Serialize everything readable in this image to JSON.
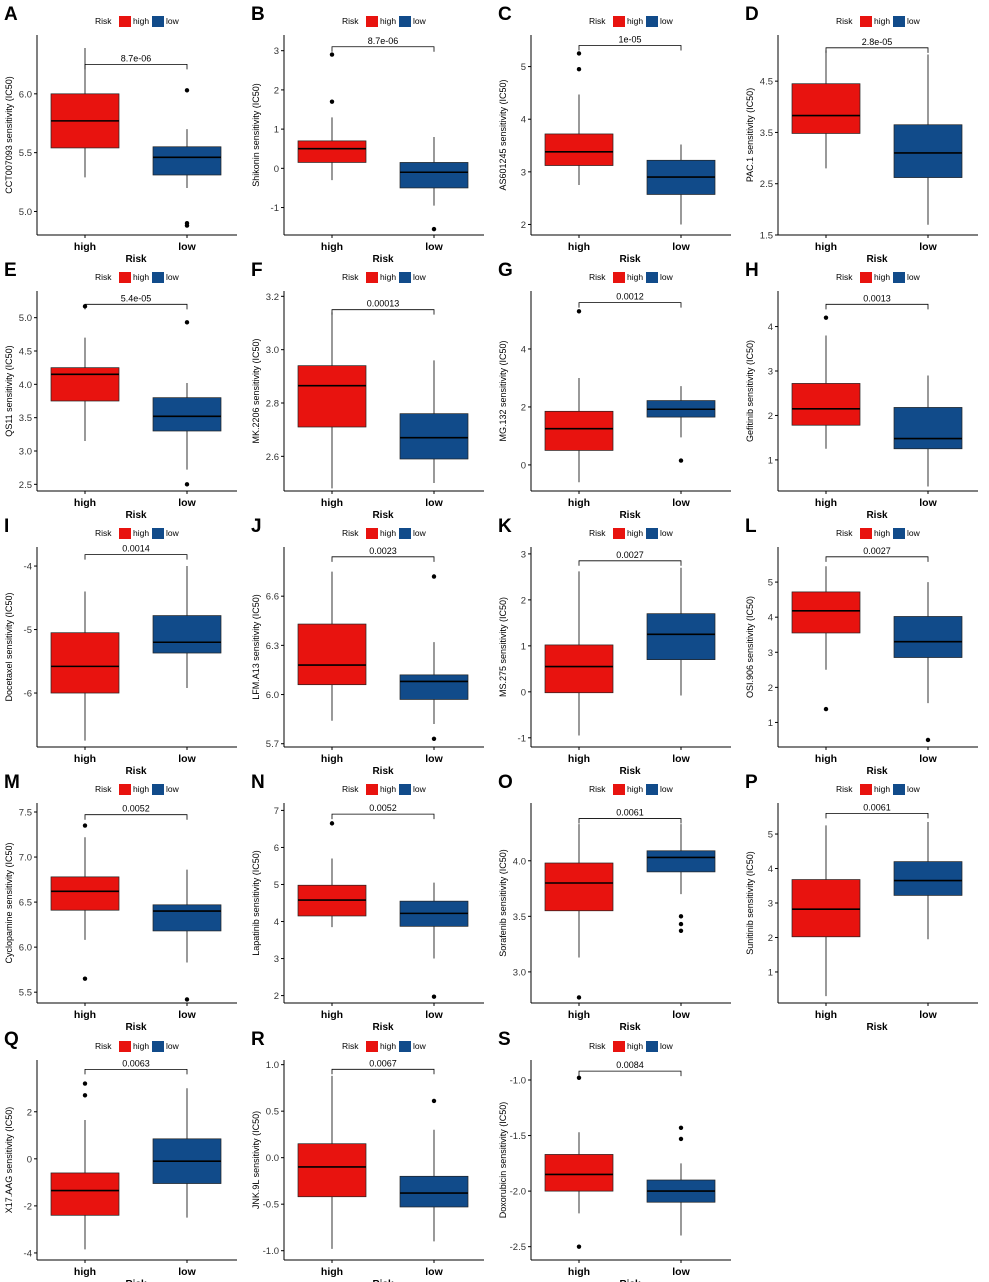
{
  "figure": {
    "legend_title": "Risk",
    "colors": {
      "high": "#e8130f",
      "low": "#114b8a"
    }
  },
  "chart_data": [
    {
      "type": "box",
      "panel": "A",
      "title": "",
      "ylabel": "CCT007093 sensitivity (IC50)",
      "xlabel": "Risk",
      "categories": [
        "high",
        "low"
      ],
      "legend": [
        "high",
        "low"
      ],
      "pvalue": "8.7e-06",
      "ylim": [
        4.8,
        6.5
      ],
      "yticks": [
        5.0,
        5.5,
        6.0
      ],
      "ytick_labels": [
        "5.0",
        "5.5",
        "6.0"
      ],
      "bracket": 6.25,
      "boxes": [
        {
          "group": "high",
          "min": 5.29,
          "q1": 5.54,
          "median": 5.77,
          "q3": 6.0,
          "max": 6.39,
          "outliers": []
        },
        {
          "group": "low",
          "min": 5.2,
          "q1": 5.31,
          "median": 5.46,
          "q3": 5.55,
          "max": 5.7,
          "outliers": [
            6.03,
            4.88,
            4.9
          ]
        }
      ]
    },
    {
      "type": "box",
      "panel": "B",
      "title": "",
      "ylabel": "Shikonin sensitivity (IC50)",
      "xlabel": "Risk",
      "categories": [
        "high",
        "low"
      ],
      "legend": [
        "high",
        "low"
      ],
      "pvalue": "8.7e-06",
      "ylim": [
        -1.7,
        3.4
      ],
      "yticks": [
        -1,
        0,
        1,
        2,
        3
      ],
      "ytick_labels": [
        "-1",
        "0",
        "1",
        "2",
        "3"
      ],
      "bracket": 3.1,
      "boxes": [
        {
          "group": "high",
          "min": -0.3,
          "q1": 0.15,
          "median": 0.5,
          "q3": 0.7,
          "max": 1.3,
          "outliers": [
            2.9,
            1.7
          ]
        },
        {
          "group": "low",
          "min": -0.95,
          "q1": -0.5,
          "median": -0.1,
          "q3": 0.15,
          "max": 0.8,
          "outliers": [
            -1.55
          ]
        }
      ]
    },
    {
      "type": "box",
      "panel": "C",
      "title": "",
      "ylabel": "AS601245 sensitivity (IC50)",
      "xlabel": "Risk",
      "categories": [
        "high",
        "low"
      ],
      "legend": [
        "high",
        "low"
      ],
      "pvalue": "1e-05",
      "ylim": [
        1.8,
        5.6
      ],
      "yticks": [
        2,
        3,
        4,
        5
      ],
      "ytick_labels": [
        "2",
        "3",
        "4",
        "5"
      ],
      "bracket": 5.4,
      "boxes": [
        {
          "group": "high",
          "min": 2.75,
          "q1": 3.12,
          "median": 3.38,
          "q3": 3.72,
          "max": 4.47,
          "outliers": [
            5.25,
            4.95
          ]
        },
        {
          "group": "low",
          "min": 2.0,
          "q1": 2.57,
          "median": 2.9,
          "q3": 3.22,
          "max": 3.52,
          "outliers": []
        }
      ]
    },
    {
      "type": "box",
      "panel": "D",
      "title": "",
      "ylabel": "PAC.1 sensitivity (IC50)",
      "xlabel": "Risk",
      "categories": [
        "high",
        "low"
      ],
      "legend": [
        "high",
        "low"
      ],
      "pvalue": "2.8e-05",
      "ylim": [
        1.5,
        5.4
      ],
      "yticks": [
        1.5,
        2.5,
        3.5,
        4.5
      ],
      "ytick_labels": [
        "1.5",
        "2.5",
        "3.5",
        "4.5"
      ],
      "bracket": 5.15,
      "boxes": [
        {
          "group": "high",
          "min": 2.8,
          "q1": 3.48,
          "median": 3.83,
          "q3": 4.45,
          "max": 5.1,
          "outliers": []
        },
        {
          "group": "low",
          "min": 1.7,
          "q1": 2.62,
          "median": 3.1,
          "q3": 3.65,
          "max": 5.02,
          "outliers": []
        }
      ]
    },
    {
      "type": "box",
      "panel": "E",
      "title": "",
      "ylabel": "QS11 sensitivity (IC50)",
      "xlabel": "Risk",
      "categories": [
        "high",
        "low"
      ],
      "legend": [
        "high",
        "low"
      ],
      "pvalue": "5.4e-05",
      "ylim": [
        2.4,
        5.4
      ],
      "yticks": [
        2.5,
        3.0,
        3.5,
        4.0,
        4.5,
        5.0
      ],
      "ytick_labels": [
        "2.5",
        "3.0",
        "3.5",
        "4.0",
        "4.5",
        "5.0"
      ],
      "bracket": 5.2,
      "boxes": [
        {
          "group": "high",
          "min": 3.15,
          "q1": 3.75,
          "median": 4.15,
          "q3": 4.25,
          "max": 4.7,
          "outliers": [
            5.17
          ]
        },
        {
          "group": "low",
          "min": 2.72,
          "q1": 3.3,
          "median": 3.52,
          "q3": 3.8,
          "max": 4.02,
          "outliers": [
            4.93,
            2.5
          ]
        }
      ]
    },
    {
      "type": "box",
      "panel": "F",
      "title": "",
      "ylabel": "MK.2206 sensitivity (IC50)",
      "xlabel": "Risk",
      "categories": [
        "high",
        "low"
      ],
      "legend": [
        "high",
        "low"
      ],
      "pvalue": "0.00013",
      "ylim": [
        2.47,
        3.22
      ],
      "yticks": [
        2.6,
        2.8,
        3.0,
        3.2
      ],
      "ytick_labels": [
        "2.6",
        "2.8",
        "3.0",
        "3.2"
      ],
      "bracket": 3.15,
      "boxes": [
        {
          "group": "high",
          "min": 2.48,
          "q1": 2.71,
          "median": 2.865,
          "q3": 2.94,
          "max": 3.14,
          "outliers": []
        },
        {
          "group": "low",
          "min": 2.5,
          "q1": 2.59,
          "median": 2.67,
          "q3": 2.76,
          "max": 2.96,
          "outliers": []
        }
      ]
    },
    {
      "type": "box",
      "panel": "G",
      "title": "",
      "ylabel": "MG.132 sensitivity (IC50)",
      "xlabel": "Risk",
      "categories": [
        "high",
        "low"
      ],
      "legend": [
        "high",
        "low"
      ],
      "pvalue": "0.0012",
      "ylim": [
        -0.9,
        6.0
      ],
      "yticks": [
        0,
        2,
        4
      ],
      "ytick_labels": [
        "0",
        "2",
        "4"
      ],
      "bracket": 5.6,
      "boxes": [
        {
          "group": "high",
          "min": -0.6,
          "q1": 0.5,
          "median": 1.25,
          "q3": 1.85,
          "max": 3.0,
          "outliers": [
            5.3
          ]
        },
        {
          "group": "low",
          "min": 0.95,
          "q1": 1.65,
          "median": 1.92,
          "q3": 2.22,
          "max": 2.72,
          "outliers": [
            0.15
          ]
        }
      ]
    },
    {
      "type": "box",
      "panel": "H",
      "title": "",
      "ylabel": "Gefitinib sensitivity (IC50)",
      "xlabel": "Risk",
      "categories": [
        "high",
        "low"
      ],
      "legend": [
        "high",
        "low"
      ],
      "pvalue": "0.0013",
      "ylim": [
        0.3,
        4.8
      ],
      "yticks": [
        1,
        2,
        3,
        4
      ],
      "ytick_labels": [
        "1",
        "2",
        "3",
        "4"
      ],
      "bracket": 4.5,
      "boxes": [
        {
          "group": "high",
          "min": 1.25,
          "q1": 1.78,
          "median": 2.15,
          "q3": 2.72,
          "max": 3.8,
          "outliers": [
            4.2
          ]
        },
        {
          "group": "low",
          "min": 0.4,
          "q1": 1.25,
          "median": 1.48,
          "q3": 2.18,
          "max": 2.9,
          "outliers": []
        }
      ]
    },
    {
      "type": "box",
      "panel": "I",
      "title": "",
      "ylabel": "Docetaxel sensitivity (IC50)",
      "xlabel": "Risk",
      "categories": [
        "high",
        "low"
      ],
      "legend": [
        "high",
        "low"
      ],
      "pvalue": "0.0014",
      "ylim": [
        -6.85,
        -3.7
      ],
      "yticks": [
        -6,
        -5,
        -4
      ],
      "ytick_labels": [
        "-6",
        "-5",
        "-4"
      ],
      "bracket": -3.82,
      "boxes": [
        {
          "group": "high",
          "min": -6.75,
          "q1": -6.0,
          "median": -5.58,
          "q3": -5.05,
          "max": -4.4,
          "outliers": []
        },
        {
          "group": "low",
          "min": -5.92,
          "q1": -5.37,
          "median": -5.2,
          "q3": -4.78,
          "max": -4.0,
          "outliers": []
        }
      ]
    },
    {
      "type": "box",
      "panel": "J",
      "title": "",
      "ylabel": "LFM.A13 sensitivity (IC50)",
      "xlabel": "Risk",
      "categories": [
        "high",
        "low"
      ],
      "legend": [
        "high",
        "low"
      ],
      "pvalue": "0.0023",
      "ylim": [
        5.68,
        6.9
      ],
      "yticks": [
        5.7,
        6.0,
        6.3,
        6.6
      ],
      "ytick_labels": [
        "5.7",
        "6.0",
        "6.3",
        "6.6"
      ],
      "bracket": 6.84,
      "boxes": [
        {
          "group": "high",
          "min": 5.84,
          "q1": 6.06,
          "median": 6.18,
          "q3": 6.43,
          "max": 6.75,
          "outliers": []
        },
        {
          "group": "low",
          "min": 5.82,
          "q1": 5.97,
          "median": 6.08,
          "q3": 6.12,
          "max": 6.32,
          "outliers": [
            6.72,
            5.73
          ]
        }
      ]
    },
    {
      "type": "box",
      "panel": "K",
      "title": "",
      "ylabel": "MS.275 sensitivity (IC50)",
      "xlabel": "Risk",
      "categories": [
        "high",
        "low"
      ],
      "legend": [
        "high",
        "low"
      ],
      "pvalue": "0.0027",
      "ylim": [
        -1.2,
        3.15
      ],
      "yticks": [
        -1,
        0,
        1,
        2,
        3
      ],
      "ytick_labels": [
        "-1",
        "0",
        "1",
        "2",
        "3"
      ],
      "bracket": 2.85,
      "boxes": [
        {
          "group": "high",
          "min": -0.95,
          "q1": -0.02,
          "median": 0.55,
          "q3": 1.02,
          "max": 2.62,
          "outliers": []
        },
        {
          "group": "low",
          "min": -0.08,
          "q1": 0.7,
          "median": 1.25,
          "q3": 1.7,
          "max": 2.7,
          "outliers": []
        }
      ]
    },
    {
      "type": "box",
      "panel": "L",
      "title": "",
      "ylabel": "OSI.906 sensitivity (IC50)",
      "xlabel": "Risk",
      "categories": [
        "high",
        "low"
      ],
      "legend": [
        "high",
        "low"
      ],
      "pvalue": "0.0027",
      "ylim": [
        0.3,
        6.0
      ],
      "yticks": [
        1,
        2,
        3,
        4,
        5
      ],
      "ytick_labels": [
        "1",
        "2",
        "3",
        "4",
        "5"
      ],
      "bracket": 5.72,
      "boxes": [
        {
          "group": "high",
          "min": 2.5,
          "q1": 3.55,
          "median": 4.18,
          "q3": 4.72,
          "max": 5.45,
          "outliers": [
            1.38
          ]
        },
        {
          "group": "low",
          "min": 1.55,
          "q1": 2.85,
          "median": 3.3,
          "q3": 4.02,
          "max": 5.0,
          "outliers": [
            0.5
          ]
        }
      ]
    },
    {
      "type": "box",
      "panel": "M",
      "title": "",
      "ylabel": "Cyclopamine sensitivity (IC50)",
      "xlabel": "Risk",
      "categories": [
        "high",
        "low"
      ],
      "legend": [
        "high",
        "low"
      ],
      "pvalue": "0.0052",
      "ylim": [
        5.38,
        7.6
      ],
      "yticks": [
        5.5,
        6.0,
        6.5,
        7.0,
        7.5
      ],
      "ytick_labels": [
        "5.5",
        "6.0",
        "6.5",
        "7.0",
        "7.5"
      ],
      "bracket": 7.47,
      "boxes": [
        {
          "group": "high",
          "min": 6.08,
          "q1": 6.41,
          "median": 6.62,
          "q3": 6.78,
          "max": 7.22,
          "outliers": [
            7.35,
            5.65
          ]
        },
        {
          "group": "low",
          "min": 5.83,
          "q1": 6.18,
          "median": 6.4,
          "q3": 6.47,
          "max": 6.86,
          "outliers": [
            5.42
          ]
        }
      ]
    },
    {
      "type": "box",
      "panel": "N",
      "title": "",
      "ylabel": "Lapatinib sensitivity (IC50)",
      "xlabel": "Risk",
      "categories": [
        "high",
        "low"
      ],
      "legend": [
        "high",
        "low"
      ],
      "pvalue": "0.0052",
      "ylim": [
        1.8,
        7.2
      ],
      "yticks": [
        2,
        3,
        4,
        5,
        6,
        7
      ],
      "ytick_labels": [
        "2",
        "3",
        "4",
        "5",
        "6",
        "7"
      ],
      "bracket": 6.9,
      "boxes": [
        {
          "group": "high",
          "min": 3.85,
          "q1": 4.15,
          "median": 4.58,
          "q3": 4.98,
          "max": 5.7,
          "outliers": [
            6.65
          ]
        },
        {
          "group": "low",
          "min": 3.0,
          "q1": 3.87,
          "median": 4.22,
          "q3": 4.55,
          "max": 5.05,
          "outliers": [
            1.97
          ]
        }
      ]
    },
    {
      "type": "box",
      "panel": "O",
      "title": "",
      "ylabel": "Sorafenib sensitivity (IC50)",
      "xlabel": "Risk",
      "categories": [
        "high",
        "low"
      ],
      "legend": [
        "high",
        "low"
      ],
      "pvalue": "0.0061",
      "ylim": [
        2.72,
        4.52
      ],
      "yticks": [
        3.0,
        3.5,
        4.0
      ],
      "ytick_labels": [
        "3.0",
        "3.5",
        "4.0"
      ],
      "bracket": 4.38,
      "boxes": [
        {
          "group": "high",
          "min": 3.13,
          "q1": 3.55,
          "median": 3.8,
          "q3": 3.98,
          "max": 4.33,
          "outliers": [
            2.77
          ]
        },
        {
          "group": "low",
          "min": 3.7,
          "q1": 3.9,
          "median": 4.03,
          "q3": 4.09,
          "max": 4.33,
          "outliers": [
            3.5,
            3.43,
            3.37
          ]
        }
      ]
    },
    {
      "type": "box",
      "panel": "P",
      "title": "",
      "ylabel": "Sunitinib sensitivity (IC50)",
      "xlabel": "Risk",
      "categories": [
        "high",
        "low"
      ],
      "legend": [
        "high",
        "low"
      ],
      "pvalue": "0.0061",
      "ylim": [
        0.1,
        5.9
      ],
      "yticks": [
        1,
        2,
        3,
        4,
        5
      ],
      "ytick_labels": [
        "1",
        "2",
        "3",
        "4",
        "5"
      ],
      "bracket": 5.6,
      "boxes": [
        {
          "group": "high",
          "min": 0.3,
          "q1": 2.02,
          "median": 2.82,
          "q3": 3.68,
          "max": 5.25,
          "outliers": []
        },
        {
          "group": "low",
          "min": 1.95,
          "q1": 3.22,
          "median": 3.65,
          "q3": 4.2,
          "max": 5.35,
          "outliers": []
        }
      ]
    },
    {
      "type": "box",
      "panel": "Q",
      "title": "",
      "ylabel": "X17.AAG sensitivity (IC50)",
      "xlabel": "Risk",
      "categories": [
        "high",
        "low"
      ],
      "legend": [
        "high",
        "low"
      ],
      "pvalue": "0.0063",
      "ylim": [
        -4.3,
        4.2
      ],
      "yticks": [
        -4,
        -2,
        0,
        2
      ],
      "ytick_labels": [
        "-4",
        "-2",
        "0",
        "2"
      ],
      "bracket": 3.8,
      "boxes": [
        {
          "group": "high",
          "min": -3.85,
          "q1": -2.4,
          "median": -1.35,
          "q3": -0.6,
          "max": 1.65,
          "outliers": [
            3.2,
            2.7
          ]
        },
        {
          "group": "low",
          "min": -2.5,
          "q1": -1.05,
          "median": -0.1,
          "q3": 0.85,
          "max": 3.0,
          "outliers": []
        }
      ]
    },
    {
      "type": "box",
      "panel": "R",
      "title": "",
      "ylabel": "JNK.9L sensitivity (IC50)",
      "xlabel": "Risk",
      "categories": [
        "high",
        "low"
      ],
      "legend": [
        "high",
        "low"
      ],
      "pvalue": "0.0067",
      "ylim": [
        -1.1,
        1.05
      ],
      "yticks": [
        -1.0,
        -0.5,
        0.0,
        0.5,
        1.0
      ],
      "ytick_labels": [
        "-1.0",
        "-0.5",
        "0.0",
        "0.5",
        "1.0"
      ],
      "bracket": 0.95,
      "boxes": [
        {
          "group": "high",
          "min": -0.98,
          "q1": -0.42,
          "median": -0.1,
          "q3": 0.15,
          "max": 0.88,
          "outliers": []
        },
        {
          "group": "low",
          "min": -0.9,
          "q1": -0.53,
          "median": -0.38,
          "q3": -0.2,
          "max": 0.3,
          "outliers": [
            0.61
          ]
        }
      ]
    },
    {
      "type": "box",
      "panel": "S",
      "title": "",
      "ylabel": "Doxorubicin sensitivity (IC50)",
      "xlabel": "Risk",
      "categories": [
        "high",
        "low"
      ],
      "legend": [
        "high",
        "low"
      ],
      "pvalue": "0.0084",
      "ylim": [
        -2.62,
        -0.82
      ],
      "yticks": [
        -2.5,
        -2.0,
        -1.5,
        -1.0
      ],
      "ytick_labels": [
        "-2.5",
        "-2.0",
        "-1.5",
        "-1.0"
      ],
      "bracket": -0.92,
      "boxes": [
        {
          "group": "high",
          "min": -2.2,
          "q1": -2.0,
          "median": -1.85,
          "q3": -1.67,
          "max": -1.47,
          "outliers": [
            -0.98,
            -2.5
          ]
        },
        {
          "group": "low",
          "min": -2.4,
          "q1": -2.1,
          "median": -2.0,
          "q3": -1.9,
          "max": -1.75,
          "outliers": [
            -1.43,
            -1.53
          ]
        }
      ]
    }
  ]
}
